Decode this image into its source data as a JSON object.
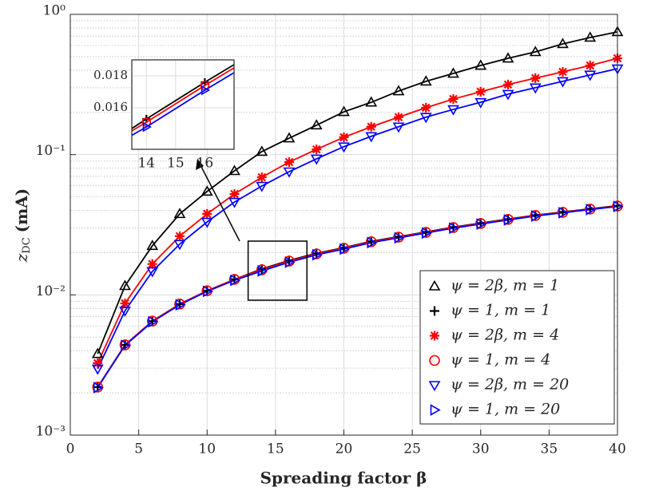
{
  "chart_data": {
    "type": "line",
    "xlabel": "Spreading factor β",
    "ylabel": {
      "symbol": "z",
      "subscript": "DC",
      "unit": "(mA)"
    },
    "x": [
      2,
      4,
      6,
      8,
      10,
      12,
      14,
      16,
      18,
      20,
      22,
      24,
      26,
      28,
      30,
      32,
      34,
      36,
      38,
      40
    ],
    "xlim": [
      0,
      40
    ],
    "xticks": [
      0,
      5,
      10,
      15,
      20,
      25,
      30,
      35,
      40
    ],
    "ylim": [
      0.001,
      1
    ],
    "log_y": true,
    "yticks": [
      {
        "value": 0.001,
        "label": "10⁻³"
      },
      {
        "value": 0.01,
        "label": "10⁻²"
      },
      {
        "value": 0.1,
        "label": "10⁻¹"
      },
      {
        "value": 1,
        "label": "10⁰"
      }
    ],
    "grid": true,
    "legend": "lower right",
    "series": [
      {
        "name": "ψ = 2β, m = 1",
        "color": "#000000",
        "marker": "triangle-up",
        "values": [
          0.0038,
          0.0116,
          0.0224,
          0.0378,
          0.0546,
          0.0766,
          0.105,
          0.131,
          0.162,
          0.202,
          0.236,
          0.284,
          0.333,
          0.379,
          0.432,
          0.486,
          0.54,
          0.616,
          0.684,
          0.75
        ]
      },
      {
        "name": "ψ = 1, m = 1",
        "color": "#000000",
        "marker": "plus",
        "values": [
          0.0022,
          0.0044,
          0.0065,
          0.0086,
          0.0107,
          0.0129,
          0.0153,
          0.0176,
          0.0198,
          0.0217,
          0.0241,
          0.026,
          0.0281,
          0.0304,
          0.0325,
          0.0347,
          0.037,
          0.039,
          0.0411,
          0.0432
        ]
      },
      {
        "name": "ψ = 2β, m = 4",
        "color": "#ff0000",
        "marker": "star",
        "values": [
          0.00326,
          0.0087,
          0.0166,
          0.0262,
          0.0378,
          0.0524,
          0.069,
          0.0885,
          0.109,
          0.133,
          0.158,
          0.185,
          0.216,
          0.249,
          0.281,
          0.316,
          0.351,
          0.389,
          0.432,
          0.486
        ]
      },
      {
        "name": "ψ = 1, m = 4",
        "color": "#ff0000",
        "marker": "circle",
        "values": [
          0.0022,
          0.0044,
          0.0065,
          0.0086,
          0.0107,
          0.0129,
          0.0151,
          0.0174,
          0.0196,
          0.0215,
          0.0239,
          0.0258,
          0.0279,
          0.0302,
          0.0323,
          0.0345,
          0.0368,
          0.0388,
          0.0409,
          0.043
        ]
      },
      {
        "name": "ψ = 2β, m = 20",
        "color": "#0000ff",
        "marker": "triangle-down",
        "values": [
          0.00297,
          0.0077,
          0.0147,
          0.023,
          0.0331,
          0.0459,
          0.0597,
          0.0756,
          0.0933,
          0.114,
          0.135,
          0.158,
          0.185,
          0.21,
          0.236,
          0.27,
          0.3,
          0.333,
          0.37,
          0.41
        ]
      },
      {
        "name": "ψ = 1, m = 20",
        "color": "#0000ff",
        "marker": "triangle-right",
        "values": [
          0.00218,
          0.00436,
          0.00643,
          0.0085,
          0.0106,
          0.0127,
          0.0148,
          0.0171,
          0.0193,
          0.0212,
          0.0236,
          0.0255,
          0.0276,
          0.0299,
          0.032,
          0.0342,
          0.0365,
          0.0385,
          0.0406,
          0.0427
        ]
      }
    ],
    "inset": {
      "xlim": [
        13.5,
        17
      ],
      "xticks": [
        14,
        15,
        16
      ],
      "ylim": [
        0.0134,
        0.019
      ],
      "yticks": [
        0.016,
        0.018
      ]
    }
  }
}
